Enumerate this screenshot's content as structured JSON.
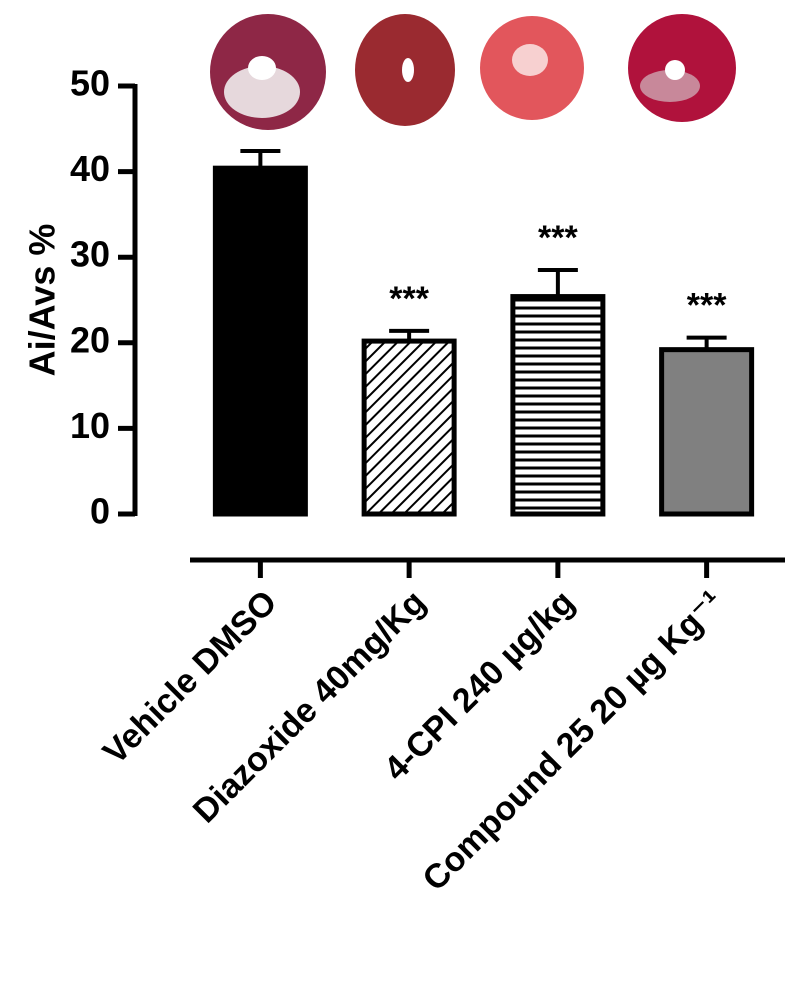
{
  "chart_data": {
    "type": "bar",
    "ylabel": "Ai/Avs %",
    "categories": [
      "Vehicle DMSO",
      "Diazoxide 40mg/Kg",
      "4-CPI 240  µg/kg",
      "Compound 25 20 µg Kg⁻¹"
    ],
    "values": [
      40.4,
      20.2,
      25.4,
      19.2
    ],
    "errors": [
      2.0,
      1.2,
      3.1,
      1.4
    ],
    "annotations": [
      null,
      "***",
      "***",
      "***"
    ],
    "colors": [
      "#000000",
      "#ffffff",
      "#ffffff",
      "#808080"
    ],
    "patterns": [
      "solid",
      "diagonal",
      "horizontal",
      "solid"
    ],
    "ylim": [
      0,
      50
    ],
    "yticks": [
      0,
      10,
      20,
      30,
      40,
      50
    ]
  }
}
